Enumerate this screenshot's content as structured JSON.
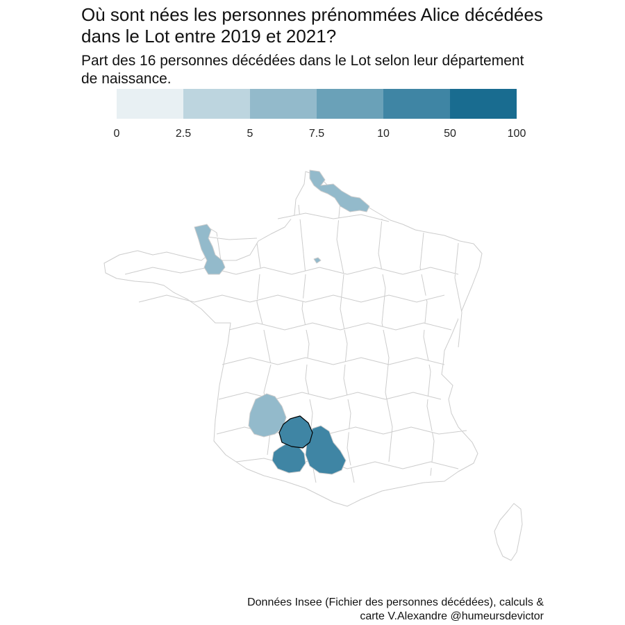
{
  "title": {
    "line1": "Où sont nées les personnes prénommées Alice décédées",
    "line2": "dans le Lot entre 2019 et 2021?"
  },
  "subtitle": {
    "line1": "Part des 16 personnes décédées dans le Lot selon leur département",
    "line2": "de naissance."
  },
  "legend": {
    "breaks": [
      "0",
      "2.5",
      "5",
      "7.5",
      "10",
      "50",
      "100"
    ],
    "colors": [
      "#e8f0f3",
      "#bdd5df",
      "#93bacb",
      "#6aa1b8",
      "#3f85a4",
      "#196c90"
    ]
  },
  "map": {
    "highlighted_department": "Lot",
    "highlighted_outline": "#000000",
    "border_color": "#cccccc",
    "regions": [
      {
        "name": "Nord",
        "class": "5-7.5",
        "color": "#93bacb"
      },
      {
        "name": "Manche",
        "class": "5-7.5",
        "color": "#93bacb"
      },
      {
        "name": "Paris",
        "class": "5-7.5",
        "color": "#93bacb"
      },
      {
        "name": "Dordogne",
        "class": "5-7.5",
        "color": "#93bacb"
      },
      {
        "name": "Lot",
        "class": "10-50",
        "color": "#3f85a4"
      },
      {
        "name": "Aveyron",
        "class": "10-50",
        "color": "#3f85a4"
      },
      {
        "name": "Tarn-et-Garonne",
        "class": "10-50",
        "color": "#3f85a4"
      }
    ]
  },
  "caption": {
    "line1": "Données Insee (Fichier des personnes décédées), calculs &",
    "line2": "carte V.Alexandre @humeursdevictor"
  }
}
